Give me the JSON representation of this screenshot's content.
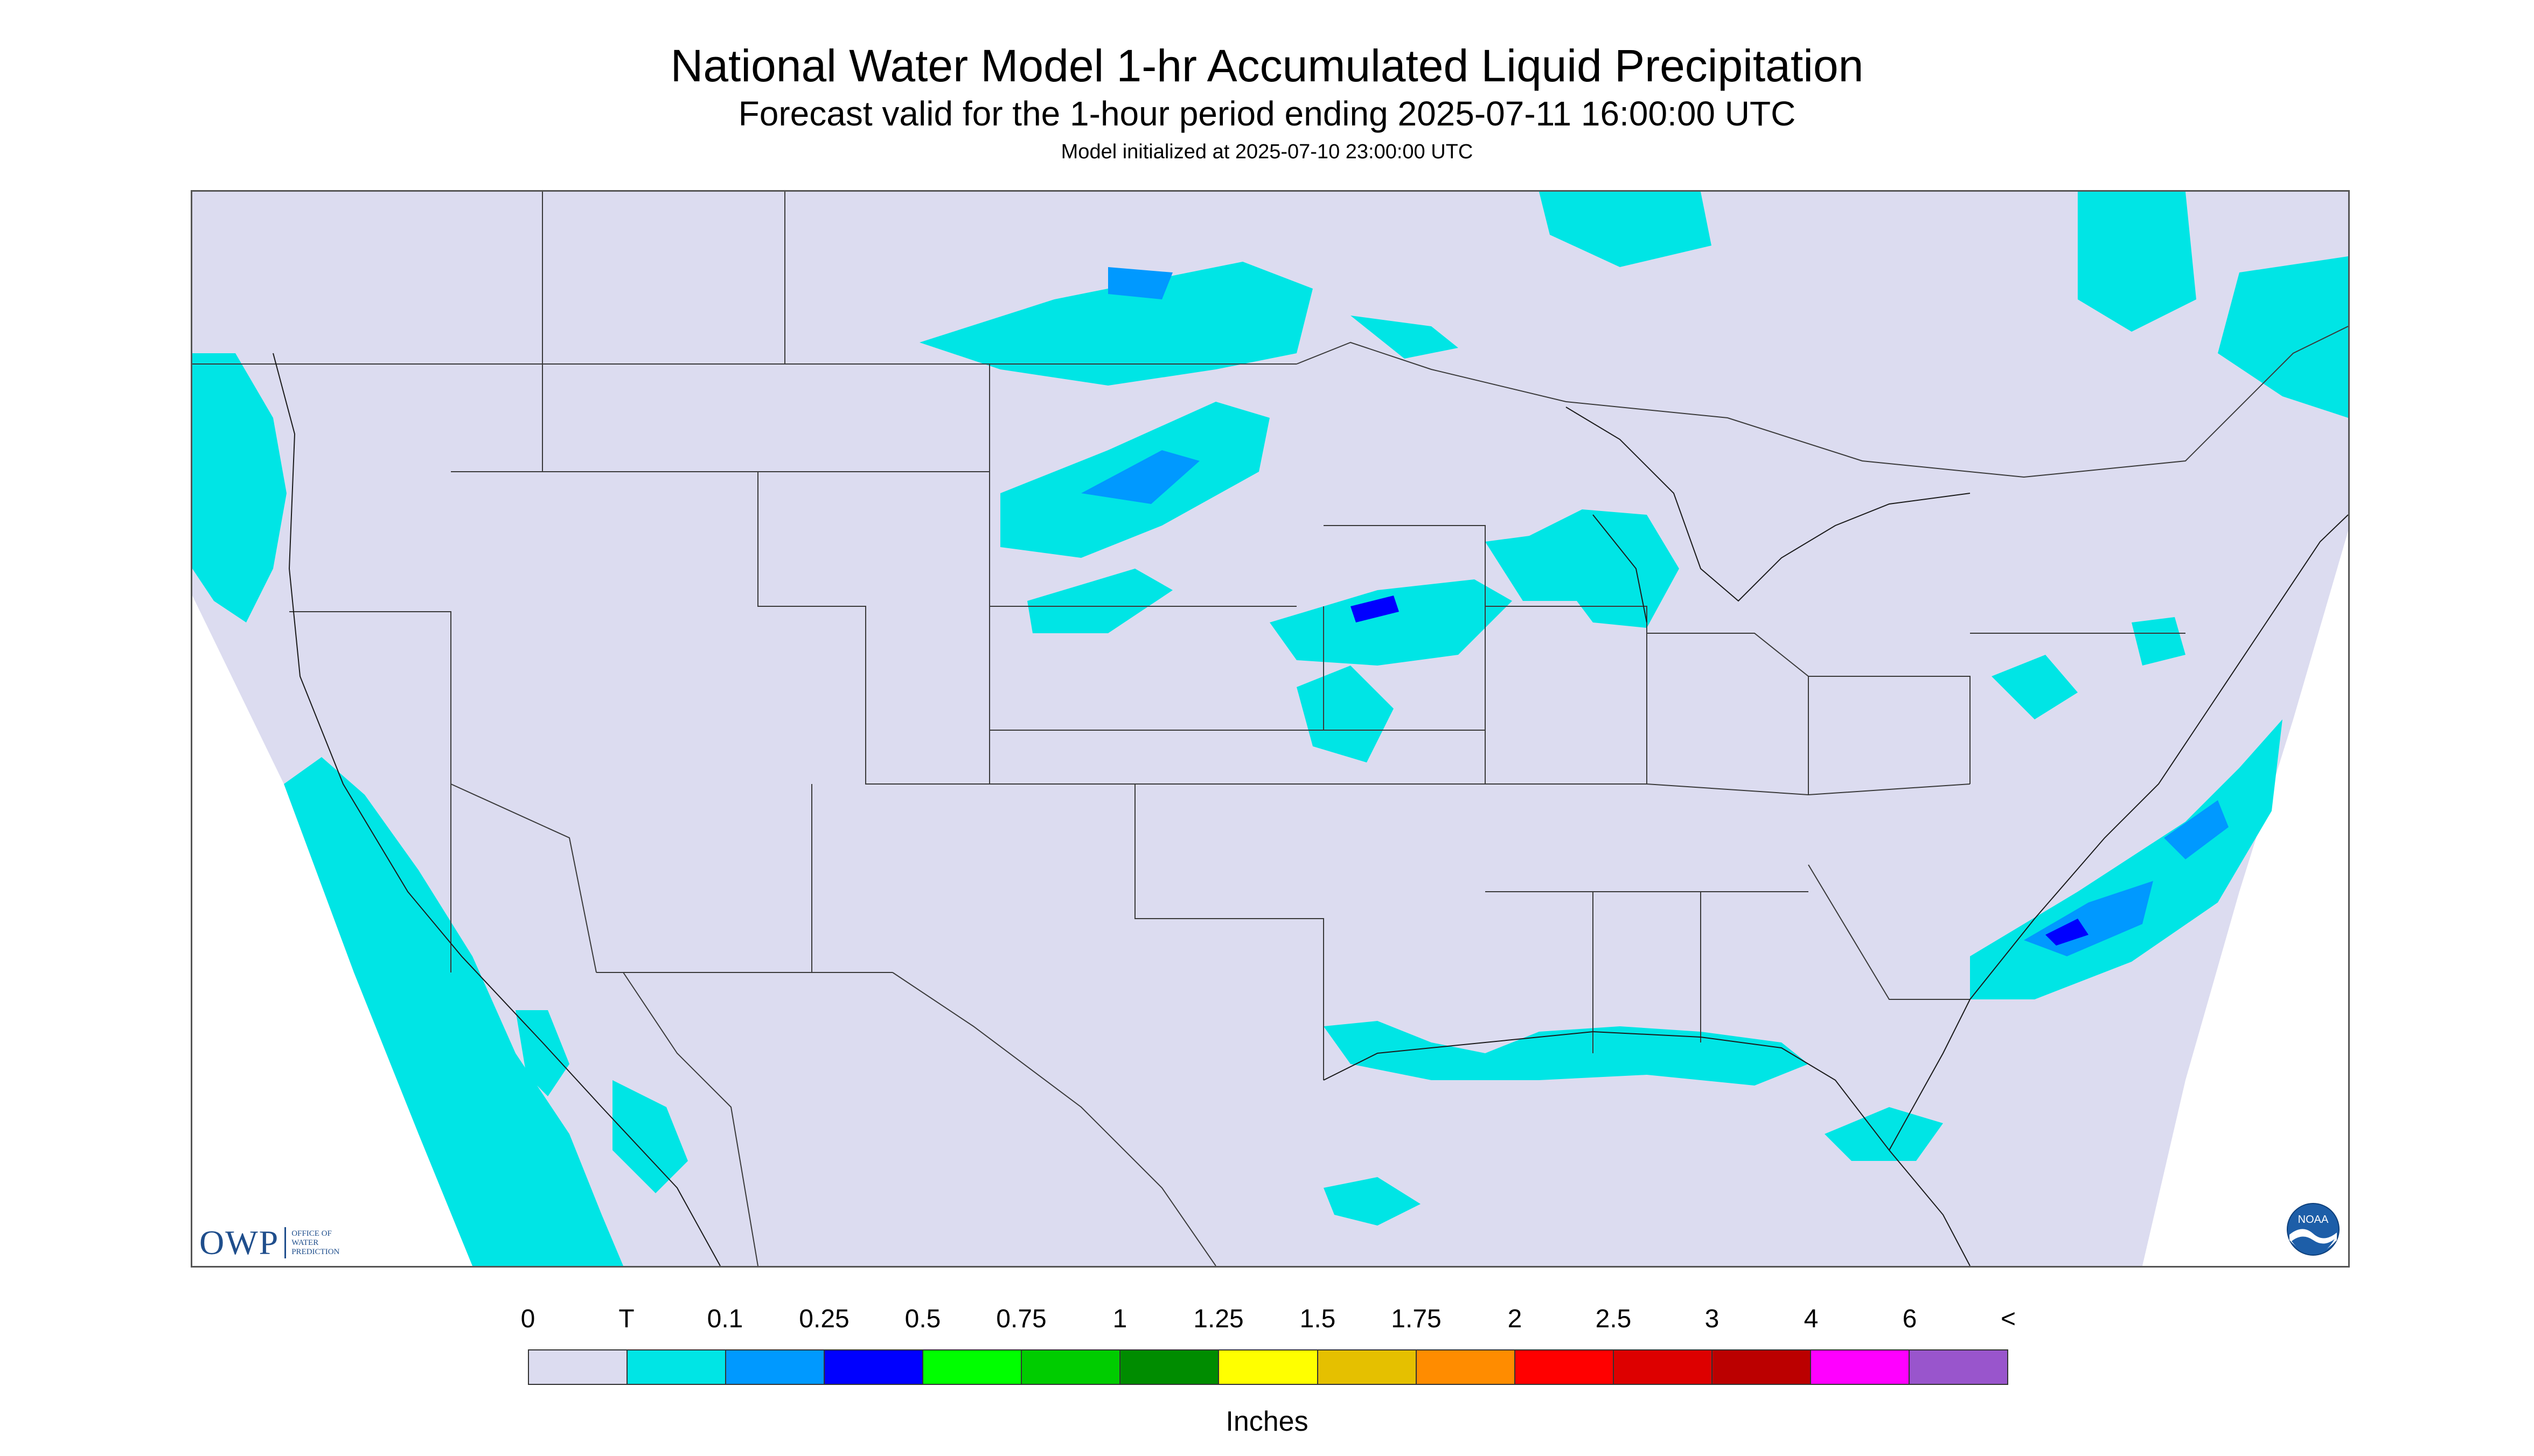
{
  "title": "National Water Model 1-hr Accumulated Liquid Precipitation",
  "subtitle": "Forecast valid for the 1-hour period ending 2025-07-11 16:00:00 UTC",
  "model_init": "Model initialized at 2025-07-10 23:00:00 UTC",
  "logos": {
    "owp_letters": "OWP",
    "owp_text": "OFFICE OF\nWATER\nPREDICTION",
    "noaa_text": "NOAA"
  },
  "colors": {
    "map_background": "#dcdcf0",
    "outside_domain": "#ffffff",
    "boundary_lines": "#3a3a3a",
    "trace_cyan": "#00e5e5",
    "light_blue": "#0099ff",
    "blue": "#0000ff"
  },
  "legend": {
    "units": "Inches",
    "labels": [
      "0",
      "T",
      "0.1",
      "0.25",
      "0.5",
      "0.75",
      "1",
      "1.25",
      "1.5",
      "1.75",
      "2",
      "2.5",
      "3",
      "4",
      "6",
      "<"
    ],
    "colors": [
      "#dcdcf0",
      "#00e5e5",
      "#0099ff",
      "#0000ff",
      "#00ff00",
      "#00cc00",
      "#008c00",
      "#ffff00",
      "#e5c000",
      "#ff8c00",
      "#ff0000",
      "#dd0000",
      "#bb0000",
      "#ff00ff",
      "#9955cc"
    ]
  }
}
